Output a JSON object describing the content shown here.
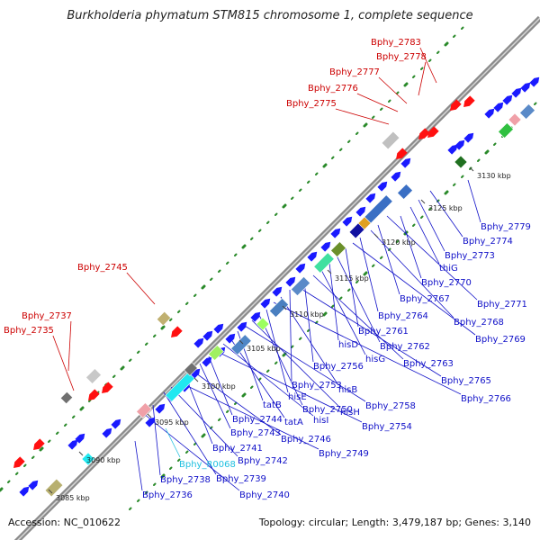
{
  "title": "Burkholderia phymatum STM815 chromosome 1, complete sequence",
  "footer": {
    "accession": "Accession: NC_010622",
    "topology": "Topology: circular; Length: 3,479,187 bp; Genes: 3,140"
  },
  "colors": {
    "backbone": "#8c8c8c",
    "label_blue": "#1010c8",
    "label_red": "#cc0000",
    "label_cyan": "#20c0e0",
    "tick_dots": "#2a8a2a"
  },
  "ticks": [
    "3085 kbp",
    "3090 kbp",
    "3095 kbp",
    "3100 kbp",
    "3105 kbp",
    "3110 kbp",
    "3115 kbp",
    "3120 kbp",
    "3125 kbp",
    "3130 kbp"
  ],
  "labels_red": [
    "Bphy_2783",
    "Bphy_2778",
    "Bphy_2777",
    "Bphy_2776",
    "Bphy_2775",
    "Bphy_2745",
    "Bphy_2737",
    "Bphy_2735"
  ],
  "labels_blue": [
    "Bphy_2779",
    "Bphy_2774",
    "Bphy_2773",
    "thiG",
    "Bphy_2770",
    "Bphy_2771",
    "Bphy_2767",
    "Bphy_2768",
    "Bphy_2764",
    "Bphy_2769",
    "Bphy_2761",
    "Bphy_2762",
    "hisD",
    "hisG",
    "Bphy_2763",
    "Bphy_2756",
    "Bphy_2765",
    "Bphy_2753",
    "hisB",
    "Bphy_2766",
    "hisE",
    "Bphy_2750",
    "hisH",
    "Bphy_2758",
    "tatB",
    "tatA",
    "hisI",
    "Bphy_2754",
    "Bphy_2744",
    "Bphy_2743",
    "Bphy_2746",
    "Bphy_2741",
    "Bphy_2749",
    "Bphy_2742",
    "Bphy_2739",
    "Bphy_2738",
    "Bphy_2740",
    "Bphy_2736"
  ],
  "labels_cyan": [
    "Bphy_R0068"
  ]
}
